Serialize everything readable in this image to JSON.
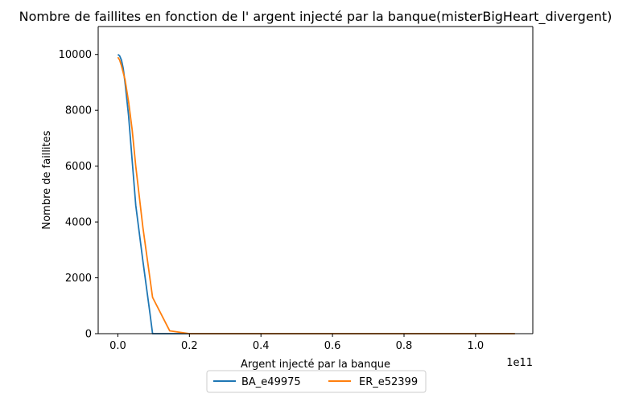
{
  "chart_data": {
    "type": "line",
    "title": "Nombre de faillites en fonction de l' argent injecté par la banque(misterBigHeart_divergent)",
    "xlabel": "Argent injecté par la banque",
    "ylabel": "Nombre de faillites",
    "x_offset_label": "1e11",
    "xlim": [
      -0.055,
      1.16
    ],
    "ylim": [
      0,
      11000
    ],
    "x_ticks": [
      0.0,
      0.2,
      0.4,
      0.6,
      0.8,
      1.0
    ],
    "x_tick_labels": [
      "0.0",
      "0.2",
      "0.4",
      "0.6",
      "0.8",
      "1.0"
    ],
    "y_ticks": [
      0,
      2000,
      4000,
      6000,
      8000,
      10000
    ],
    "y_tick_labels": [
      "0",
      "2000",
      "4000",
      "6000",
      "8000",
      "10000"
    ],
    "grid": false,
    "legend_position": "below chart, center",
    "series": [
      {
        "name": "BA_e49975",
        "color": "#1f77b4",
        "x": [
          0.0,
          0.005,
          0.01,
          0.015,
          0.02,
          0.03,
          0.04,
          0.05,
          0.07,
          0.09,
          0.097,
          0.15,
          0.2,
          0.4,
          0.6,
          0.8,
          1.0,
          1.11
        ],
        "y": [
          10000,
          9950,
          9800,
          9500,
          9000,
          7800,
          6200,
          4600,
          2600,
          700,
          0,
          0,
          0,
          0,
          0,
          0,
          0,
          0
        ]
      },
      {
        "name": "ER_e52399",
        "color": "#ff7f0e",
        "x": [
          0.0,
          0.005,
          0.01,
          0.02,
          0.03,
          0.04,
          0.05,
          0.07,
          0.097,
          0.145,
          0.2,
          0.4,
          0.6,
          0.8,
          1.0,
          1.11
        ],
        "y": [
          9900,
          9800,
          9600,
          9100,
          8300,
          7300,
          6000,
          3800,
          1300,
          100,
          0,
          0,
          0,
          0,
          0,
          0
        ]
      }
    ]
  }
}
